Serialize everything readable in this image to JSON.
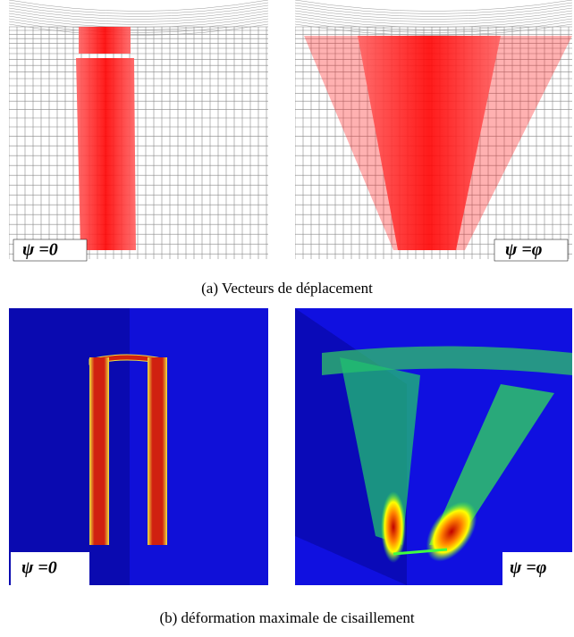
{
  "figure_a": {
    "caption": "(a) Vecteurs de déplacement",
    "panels": [
      {
        "label": "ψ =0"
      },
      {
        "label": "ψ =φ"
      }
    ]
  },
  "figure_b": {
    "caption": "(b) déformation maximale de cisaillement",
    "panels": [
      {
        "label": "ψ =0"
      },
      {
        "label": "ψ =φ"
      }
    ]
  }
}
